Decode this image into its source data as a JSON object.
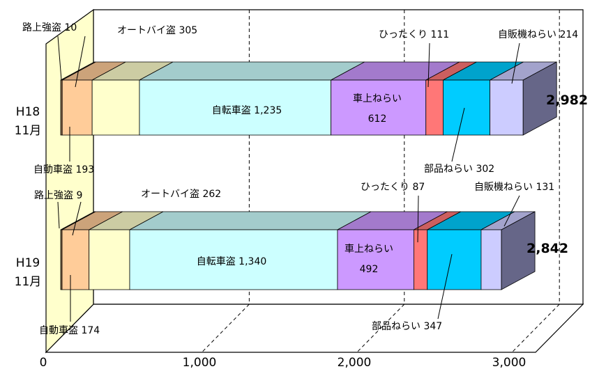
{
  "chart_data": {
    "type": "bar",
    "orientation": "horizontal",
    "stacked": true,
    "style": "3d",
    "xlim": [
      0,
      3000
    ],
    "x_ticks": [
      "0",
      "1,000",
      "2,000",
      "3,000"
    ],
    "grid": "vertical dashed",
    "categories": [
      "H18\n11月",
      "H19\n11月"
    ],
    "series": [
      {
        "name": "路上強盗",
        "color": "#8b6b4a",
        "values": [
          10,
          9
        ]
      },
      {
        "name": "自動車盗",
        "color": "#ffcc99",
        "values": [
          193,
          174
        ]
      },
      {
        "name": "オートバイ盗",
        "color": "#ffffcc",
        "values": [
          305,
          262
        ]
      },
      {
        "name": "自転車盗",
        "color": "#ccffff",
        "values": [
          1235,
          1340
        ]
      },
      {
        "name": "車上ねらい",
        "color": "#cc99ff",
        "values": [
          612,
          492
        ]
      },
      {
        "name": "ひったくり",
        "color": "#ff7777",
        "values": [
          111,
          87
        ]
      },
      {
        "name": "部品ねらい",
        "color": "#00ccff",
        "values": [
          302,
          347
        ]
      },
      {
        "name": "自販機ねらい",
        "color": "#ccccff",
        "values": [
          214,
          131
        ]
      }
    ],
    "totals": [
      "2,982",
      "2,842"
    ],
    "labels": {
      "h18": {
        "robbery": "路上強盗 10",
        "motorcycle": "オートバイ盗 305",
        "snatch": "ひったくり 111",
        "vending": "自販機ねらい 214",
        "bicycle": "自転車盗 1,235",
        "car_name": "車上ねらい",
        "car_value": "612",
        "auto": "自動車盗 193",
        "parts": "部品ねらい 302"
      },
      "h19": {
        "robbery": "路上強盗 9",
        "motorcycle": "オートバイ盗 262",
        "snatch": "ひったくり 87",
        "vending": "自販機ねらい 131",
        "bicycle": "自転車盗 1,340",
        "car_name": "車上ねらい",
        "car_value": "492",
        "auto": "自動車盗 174",
        "parts": "部品ねらい 347"
      }
    }
  }
}
